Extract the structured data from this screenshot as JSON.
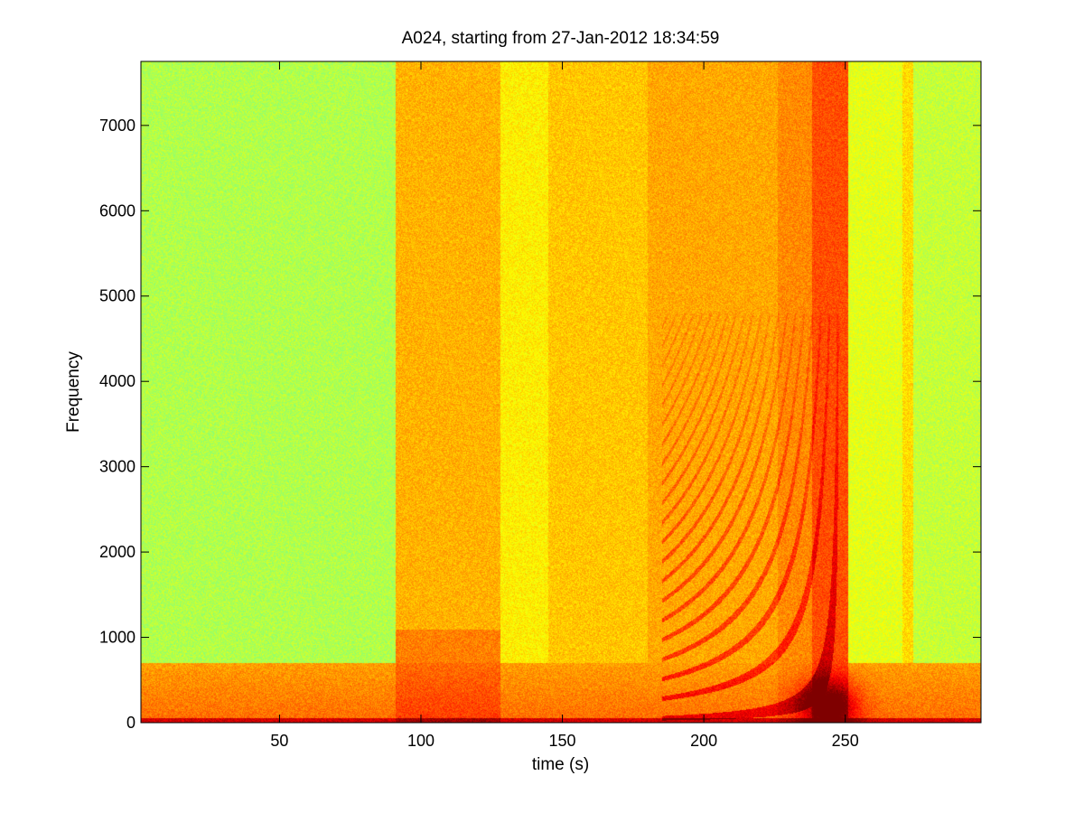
{
  "chart_data": {
    "type": "heatmap",
    "title": "A024, starting from 27-Jan-2012 18:34:59",
    "xlabel": "time (s)",
    "ylabel": "Frequency",
    "xlim": [
      1,
      298
    ],
    "ylim": [
      0,
      7750
    ],
    "xticks": [
      50,
      100,
      150,
      200,
      250
    ],
    "xtick_labels": [
      "50",
      "100",
      "150",
      "200",
      "250"
    ],
    "yticks": [
      0,
      1000,
      2000,
      3000,
      4000,
      5000,
      6000,
      7000
    ],
    "ytick_labels": [
      "0",
      "1000",
      "2000",
      "3000",
      "4000",
      "5000",
      "6000",
      "7000"
    ],
    "colormap": "jet",
    "grid": false,
    "background_level": 0.55,
    "elevated_bands": [
      {
        "t_start": 91,
        "t_end": 128,
        "level": 0.7
      },
      {
        "t_start": 128,
        "t_end": 145,
        "level": 0.64
      },
      {
        "t_start": 145,
        "t_end": 180,
        "level": 0.68
      },
      {
        "t_start": 180,
        "t_end": 226,
        "level": 0.71
      },
      {
        "t_start": 226,
        "t_end": 238,
        "level": 0.74
      },
      {
        "t_start": 238,
        "t_end": 251,
        "level": 0.8
      },
      {
        "t_start": 251,
        "t_end": 270,
        "level": 0.6
      },
      {
        "t_start": 270,
        "t_end": 274,
        "level": 0.66
      },
      {
        "t_start": 274,
        "t_end": 298,
        "level": 0.57
      }
    ],
    "low_freq_band": {
      "f_max": 700,
      "level": 0.72
    },
    "hot_spot": {
      "t": 244,
      "f": 200,
      "level": 0.95
    },
    "converging_harmonics": {
      "t_start": 185,
      "t_end": 248,
      "f_max": 4800,
      "count": 14,
      "level": 0.8
    }
  }
}
